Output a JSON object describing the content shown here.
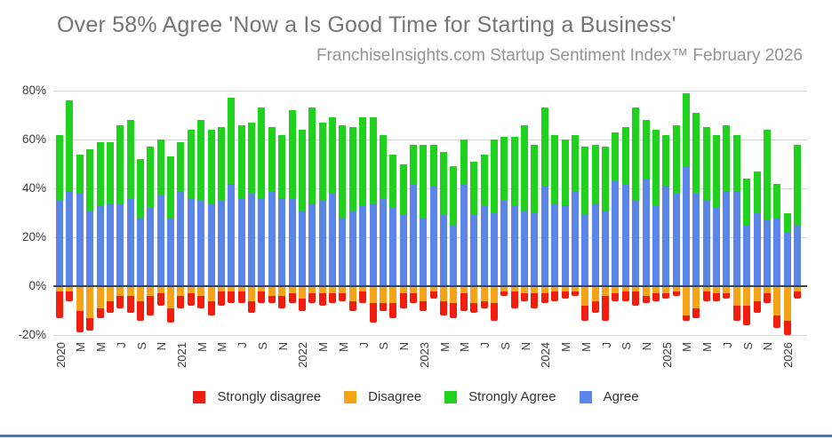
{
  "header": {
    "title": "Over 58% Agree 'Now a Is Good Time for Starting a Business'",
    "subtitle": "FranchiseInsights.com Startup Sentiment Index™ February 2026"
  },
  "colors": {
    "background": "#ffffff",
    "title_text": "#757575",
    "subtitle_text": "#949494",
    "axis_text": "#3c3c3c",
    "gridline": "#d9d9d9",
    "zero_line": "#424242",
    "legend_text": "#333333",
    "footer_line": "#4379bd"
  },
  "chart_data": {
    "type": "bar",
    "stacked": true,
    "title": "Over 58% Agree 'Now a Is Good Time for Starting a Business'",
    "subtitle": "FranchiseInsights.com Startup Sentiment Index™ February 2026",
    "note": "Values are percentages; disagree and strongly_disagree are plotted downward as negative percentages. X axis is monthly, Jan 2020 through Feb 2026, labeled every second month (J=Jan/Jul, M=Mar/May, S=Sep, N=Nov, years at January).",
    "grid": true,
    "legend_position": "bottom",
    "y_axis": {
      "range": [
        -24,
        84
      ],
      "ticks": [
        {
          "label": "80%",
          "value": 80
        },
        {
          "label": "60%",
          "value": 60
        },
        {
          "label": "40%",
          "value": 40
        },
        {
          "label": "20%",
          "value": 20
        },
        {
          "label": "0%",
          "value": 0
        },
        {
          "label": "-20%",
          "value": -20
        }
      ]
    },
    "x_range": "Jan 2020 – Feb 2026",
    "series": [
      {
        "key": "strongly_disagree",
        "name": "Strongly disagree",
        "color": "#f21d0d",
        "direction": "down"
      },
      {
        "key": "disagree",
        "name": "Disagree",
        "color": "#f5a417",
        "direction": "down"
      },
      {
        "key": "strongly_agree",
        "name": "Strongly Agree",
        "color": "#1ed21e",
        "direction": "up"
      },
      {
        "key": "agree",
        "name": "Agree",
        "color": "#5b85e8",
        "direction": "up"
      }
    ],
    "months": [
      {
        "month": "2020-01",
        "label": "2020",
        "agree": 35,
        "strongly_agree": 27,
        "disagree": 2,
        "strongly_disagree": 11
      },
      {
        "month": "2020-02",
        "label": "",
        "agree": 39,
        "strongly_agree": 37,
        "disagree": 2,
        "strongly_disagree": 4
      },
      {
        "month": "2020-03",
        "label": "M",
        "agree": 38,
        "strongly_agree": 16,
        "disagree": 10,
        "strongly_disagree": 9
      },
      {
        "month": "2020-04",
        "label": "",
        "agree": 31,
        "strongly_agree": 25,
        "disagree": 13,
        "strongly_disagree": 5
      },
      {
        "month": "2020-05",
        "label": "M",
        "agree": 33,
        "strongly_agree": 26,
        "disagree": 9,
        "strongly_disagree": 4
      },
      {
        "month": "2020-06",
        "label": "",
        "agree": 34,
        "strongly_agree": 25,
        "disagree": 6,
        "strongly_disagree": 5
      },
      {
        "month": "2020-07",
        "label": "J",
        "agree": 34,
        "strongly_agree": 32,
        "disagree": 4,
        "strongly_disagree": 5
      },
      {
        "month": "2020-08",
        "label": "",
        "agree": 36,
        "strongly_agree": 32,
        "disagree": 4,
        "strongly_disagree": 7
      },
      {
        "month": "2020-09",
        "label": "S",
        "agree": 28,
        "strongly_agree": 24,
        "disagree": 6,
        "strongly_disagree": 8
      },
      {
        "month": "2020-10",
        "label": "",
        "agree": 32,
        "strongly_agree": 25,
        "disagree": 4,
        "strongly_disagree": 8
      },
      {
        "month": "2020-11",
        "label": "N",
        "agree": 37,
        "strongly_agree": 23,
        "disagree": 3,
        "strongly_disagree": 5
      },
      {
        "month": "2020-12",
        "label": "",
        "agree": 28,
        "strongly_agree": 25,
        "disagree": 9,
        "strongly_disagree": 6
      },
      {
        "month": "2021-01",
        "label": "2021",
        "agree": 39,
        "strongly_agree": 20,
        "disagree": 4,
        "strongly_disagree": 5
      },
      {
        "month": "2021-02",
        "label": "",
        "agree": 36,
        "strongly_agree": 28,
        "disagree": 3,
        "strongly_disagree": 5
      },
      {
        "month": "2021-03",
        "label": "M",
        "agree": 35,
        "strongly_agree": 33,
        "disagree": 4,
        "strongly_disagree": 5
      },
      {
        "month": "2021-04",
        "label": "",
        "agree": 34,
        "strongly_agree": 30,
        "disagree": 6,
        "strongly_disagree": 6
      },
      {
        "month": "2021-05",
        "label": "M",
        "agree": 35,
        "strongly_agree": 30,
        "disagree": 2,
        "strongly_disagree": 6
      },
      {
        "month": "2021-06",
        "label": "",
        "agree": 42,
        "strongly_agree": 35,
        "disagree": 2,
        "strongly_disagree": 5
      },
      {
        "month": "2021-07",
        "label": "J",
        "agree": 36,
        "strongly_agree": 30,
        "disagree": 2,
        "strongly_disagree": 5
      },
      {
        "month": "2021-08",
        "label": "",
        "agree": 38,
        "strongly_agree": 29,
        "disagree": 6,
        "strongly_disagree": 5
      },
      {
        "month": "2021-09",
        "label": "S",
        "agree": 36,
        "strongly_agree": 37,
        "disagree": 2,
        "strongly_disagree": 5
      },
      {
        "month": "2021-10",
        "label": "",
        "agree": 39,
        "strongly_agree": 26,
        "disagree": 4,
        "strongly_disagree": 3
      },
      {
        "month": "2021-11",
        "label": "N",
        "agree": 36,
        "strongly_agree": 26,
        "disagree": 4,
        "strongly_disagree": 5
      },
      {
        "month": "2021-12",
        "label": "",
        "agree": 36,
        "strongly_agree": 36,
        "disagree": 3,
        "strongly_disagree": 4
      },
      {
        "month": "2022-01",
        "label": "2022",
        "agree": 31,
        "strongly_agree": 33,
        "disagree": 5,
        "strongly_disagree": 5
      },
      {
        "month": "2022-02",
        "label": "",
        "agree": 34,
        "strongly_agree": 39,
        "disagree": 3,
        "strongly_disagree": 4
      },
      {
        "month": "2022-03",
        "label": "M",
        "agree": 35,
        "strongly_agree": 32,
        "disagree": 3,
        "strongly_disagree": 5
      },
      {
        "month": "2022-04",
        "label": "",
        "agree": 38,
        "strongly_agree": 31,
        "disagree": 3,
        "strongly_disagree": 4
      },
      {
        "month": "2022-05",
        "label": "M",
        "agree": 28,
        "strongly_agree": 38,
        "disagree": 3,
        "strongly_disagree": 3
      },
      {
        "month": "2022-06",
        "label": "",
        "agree": 31,
        "strongly_agree": 34,
        "disagree": 6,
        "strongly_disagree": 4
      },
      {
        "month": "2022-07",
        "label": "J",
        "agree": 33,
        "strongly_agree": 36,
        "disagree": 2,
        "strongly_disagree": 5
      },
      {
        "month": "2022-08",
        "label": "",
        "agree": 34,
        "strongly_agree": 35,
        "disagree": 7,
        "strongly_disagree": 8
      },
      {
        "month": "2022-09",
        "label": "S",
        "agree": 36,
        "strongly_agree": 26,
        "disagree": 7,
        "strongly_disagree": 3
      },
      {
        "month": "2022-10",
        "label": "",
        "agree": 32,
        "strongly_agree": 22,
        "disagree": 7,
        "strongly_disagree": 6
      },
      {
        "month": "2022-11",
        "label": "N",
        "agree": 29,
        "strongly_agree": 21,
        "disagree": 3,
        "strongly_disagree": 6
      },
      {
        "month": "2022-12",
        "label": "",
        "agree": 42,
        "strongly_agree": 16,
        "disagree": 3,
        "strongly_disagree": 4
      },
      {
        "month": "2023-01",
        "label": "2023",
        "agree": 28,
        "strongly_agree": 30,
        "disagree": 6,
        "strongly_disagree": 4
      },
      {
        "month": "2023-02",
        "label": "",
        "agree": 41,
        "strongly_agree": 17,
        "disagree": 2,
        "strongly_disagree": 3
      },
      {
        "month": "2023-03",
        "label": "M",
        "agree": 29,
        "strongly_agree": 26,
        "disagree": 6,
        "strongly_disagree": 6
      },
      {
        "month": "2023-04",
        "label": "",
        "agree": 25,
        "strongly_agree": 24,
        "disagree": 7,
        "strongly_disagree": 6
      },
      {
        "month": "2023-05",
        "label": "M",
        "agree": 42,
        "strongly_agree": 18,
        "disagree": 3,
        "strongly_disagree": 7
      },
      {
        "month": "2023-06",
        "label": "",
        "agree": 29,
        "strongly_agree": 22,
        "disagree": 7,
        "strongly_disagree": 4
      },
      {
        "month": "2023-07",
        "label": "J",
        "agree": 33,
        "strongly_agree": 21,
        "disagree": 6,
        "strongly_disagree": 3
      },
      {
        "month": "2023-08",
        "label": "",
        "agree": 30,
        "strongly_agree": 30,
        "disagree": 7,
        "strongly_disagree": 7
      },
      {
        "month": "2023-09",
        "label": "S",
        "agree": 35,
        "strongly_agree": 26,
        "disagree": 2,
        "strongly_disagree": 2
      },
      {
        "month": "2023-10",
        "label": "",
        "agree": 33,
        "strongly_agree": 28,
        "disagree": 2,
        "strongly_disagree": 7
      },
      {
        "month": "2023-11",
        "label": "N",
        "agree": 31,
        "strongly_agree": 35,
        "disagree": 3,
        "strongly_disagree": 3
      },
      {
        "month": "2023-12",
        "label": "",
        "agree": 30,
        "strongly_agree": 28,
        "disagree": 3,
        "strongly_disagree": 6
      },
      {
        "month": "2024-01",
        "label": "2024",
        "agree": 41,
        "strongly_agree": 32,
        "disagree": 3,
        "strongly_disagree": 4
      },
      {
        "month": "2024-02",
        "label": "",
        "agree": 34,
        "strongly_agree": 28,
        "disagree": 2,
        "strongly_disagree": 4
      },
      {
        "month": "2024-03",
        "label": "M",
        "agree": 33,
        "strongly_agree": 27,
        "disagree": 2,
        "strongly_disagree": 3
      },
      {
        "month": "2024-04",
        "label": "",
        "agree": 39,
        "strongly_agree": 23,
        "disagree": 2,
        "strongly_disagree": 2
      },
      {
        "month": "2024-05",
        "label": "M",
        "agree": 29,
        "strongly_agree": 28,
        "disagree": 8,
        "strongly_disagree": 6
      },
      {
        "month": "2024-06",
        "label": "",
        "agree": 34,
        "strongly_agree": 24,
        "disagree": 6,
        "strongly_disagree": 5
      },
      {
        "month": "2024-07",
        "label": "J",
        "agree": 31,
        "strongly_agree": 26,
        "disagree": 4,
        "strongly_disagree": 10
      },
      {
        "month": "2024-08",
        "label": "",
        "agree": 43,
        "strongly_agree": 20,
        "disagree": 3,
        "strongly_disagree": 3
      },
      {
        "month": "2024-09",
        "label": "S",
        "agree": 42,
        "strongly_agree": 23,
        "disagree": 2,
        "strongly_disagree": 4
      },
      {
        "month": "2024-10",
        "label": "",
        "agree": 35,
        "strongly_agree": 38,
        "disagree": 2,
        "strongly_disagree": 6
      },
      {
        "month": "2024-11",
        "label": "N",
        "agree": 44,
        "strongly_agree": 24,
        "disagree": 4,
        "strongly_disagree": 3
      },
      {
        "month": "2024-12",
        "label": "",
        "agree": 33,
        "strongly_agree": 31,
        "disagree": 3,
        "strongly_disagree": 3
      },
      {
        "month": "2025-01",
        "label": "2025",
        "agree": 41,
        "strongly_agree": 21,
        "disagree": 3,
        "strongly_disagree": 2
      },
      {
        "month": "2025-02",
        "label": "",
        "agree": 38,
        "strongly_agree": 28,
        "disagree": 2,
        "strongly_disagree": 2
      },
      {
        "month": "2025-03",
        "label": "M",
        "agree": 49,
        "strongly_agree": 30,
        "disagree": 12,
        "strongly_disagree": 2
      },
      {
        "month": "2025-04",
        "label": "",
        "agree": 38,
        "strongly_agree": 33,
        "disagree": 9,
        "strongly_disagree": 4
      },
      {
        "month": "2025-05",
        "label": "M",
        "agree": 35,
        "strongly_agree": 30,
        "disagree": 2,
        "strongly_disagree": 4
      },
      {
        "month": "2025-06",
        "label": "",
        "agree": 32,
        "strongly_agree": 30,
        "disagree": 3,
        "strongly_disagree": 3
      },
      {
        "month": "2025-07",
        "label": "J",
        "agree": 39,
        "strongly_agree": 27,
        "disagree": 3,
        "strongly_disagree": 2
      },
      {
        "month": "2025-08",
        "label": "",
        "agree": 39,
        "strongly_agree": 23,
        "disagree": 8,
        "strongly_disagree": 6
      },
      {
        "month": "2025-09",
        "label": "S",
        "agree": 25,
        "strongly_agree": 19,
        "disagree": 8,
        "strongly_disagree": 8
      },
      {
        "month": "2025-10",
        "label": "",
        "agree": 30,
        "strongly_agree": 17,
        "disagree": 6,
        "strongly_disagree": 5
      },
      {
        "month": "2025-11",
        "label": "N",
        "agree": 27,
        "strongly_agree": 37,
        "disagree": 3,
        "strongly_disagree": 4
      },
      {
        "month": "2025-12",
        "label": "",
        "agree": 28,
        "strongly_agree": 14,
        "disagree": 12,
        "strongly_disagree": 5
      },
      {
        "month": "2026-01",
        "label": "2026",
        "agree": 22,
        "strongly_agree": 8,
        "disagree": 14,
        "strongly_disagree": 6
      },
      {
        "month": "2026-02",
        "label": "",
        "agree": 25,
        "strongly_agree": 33,
        "disagree": 2,
        "strongly_disagree": 3
      }
    ]
  },
  "legend": {
    "order": [
      "strongly_disagree",
      "disagree",
      "strongly_agree",
      "agree"
    ]
  }
}
